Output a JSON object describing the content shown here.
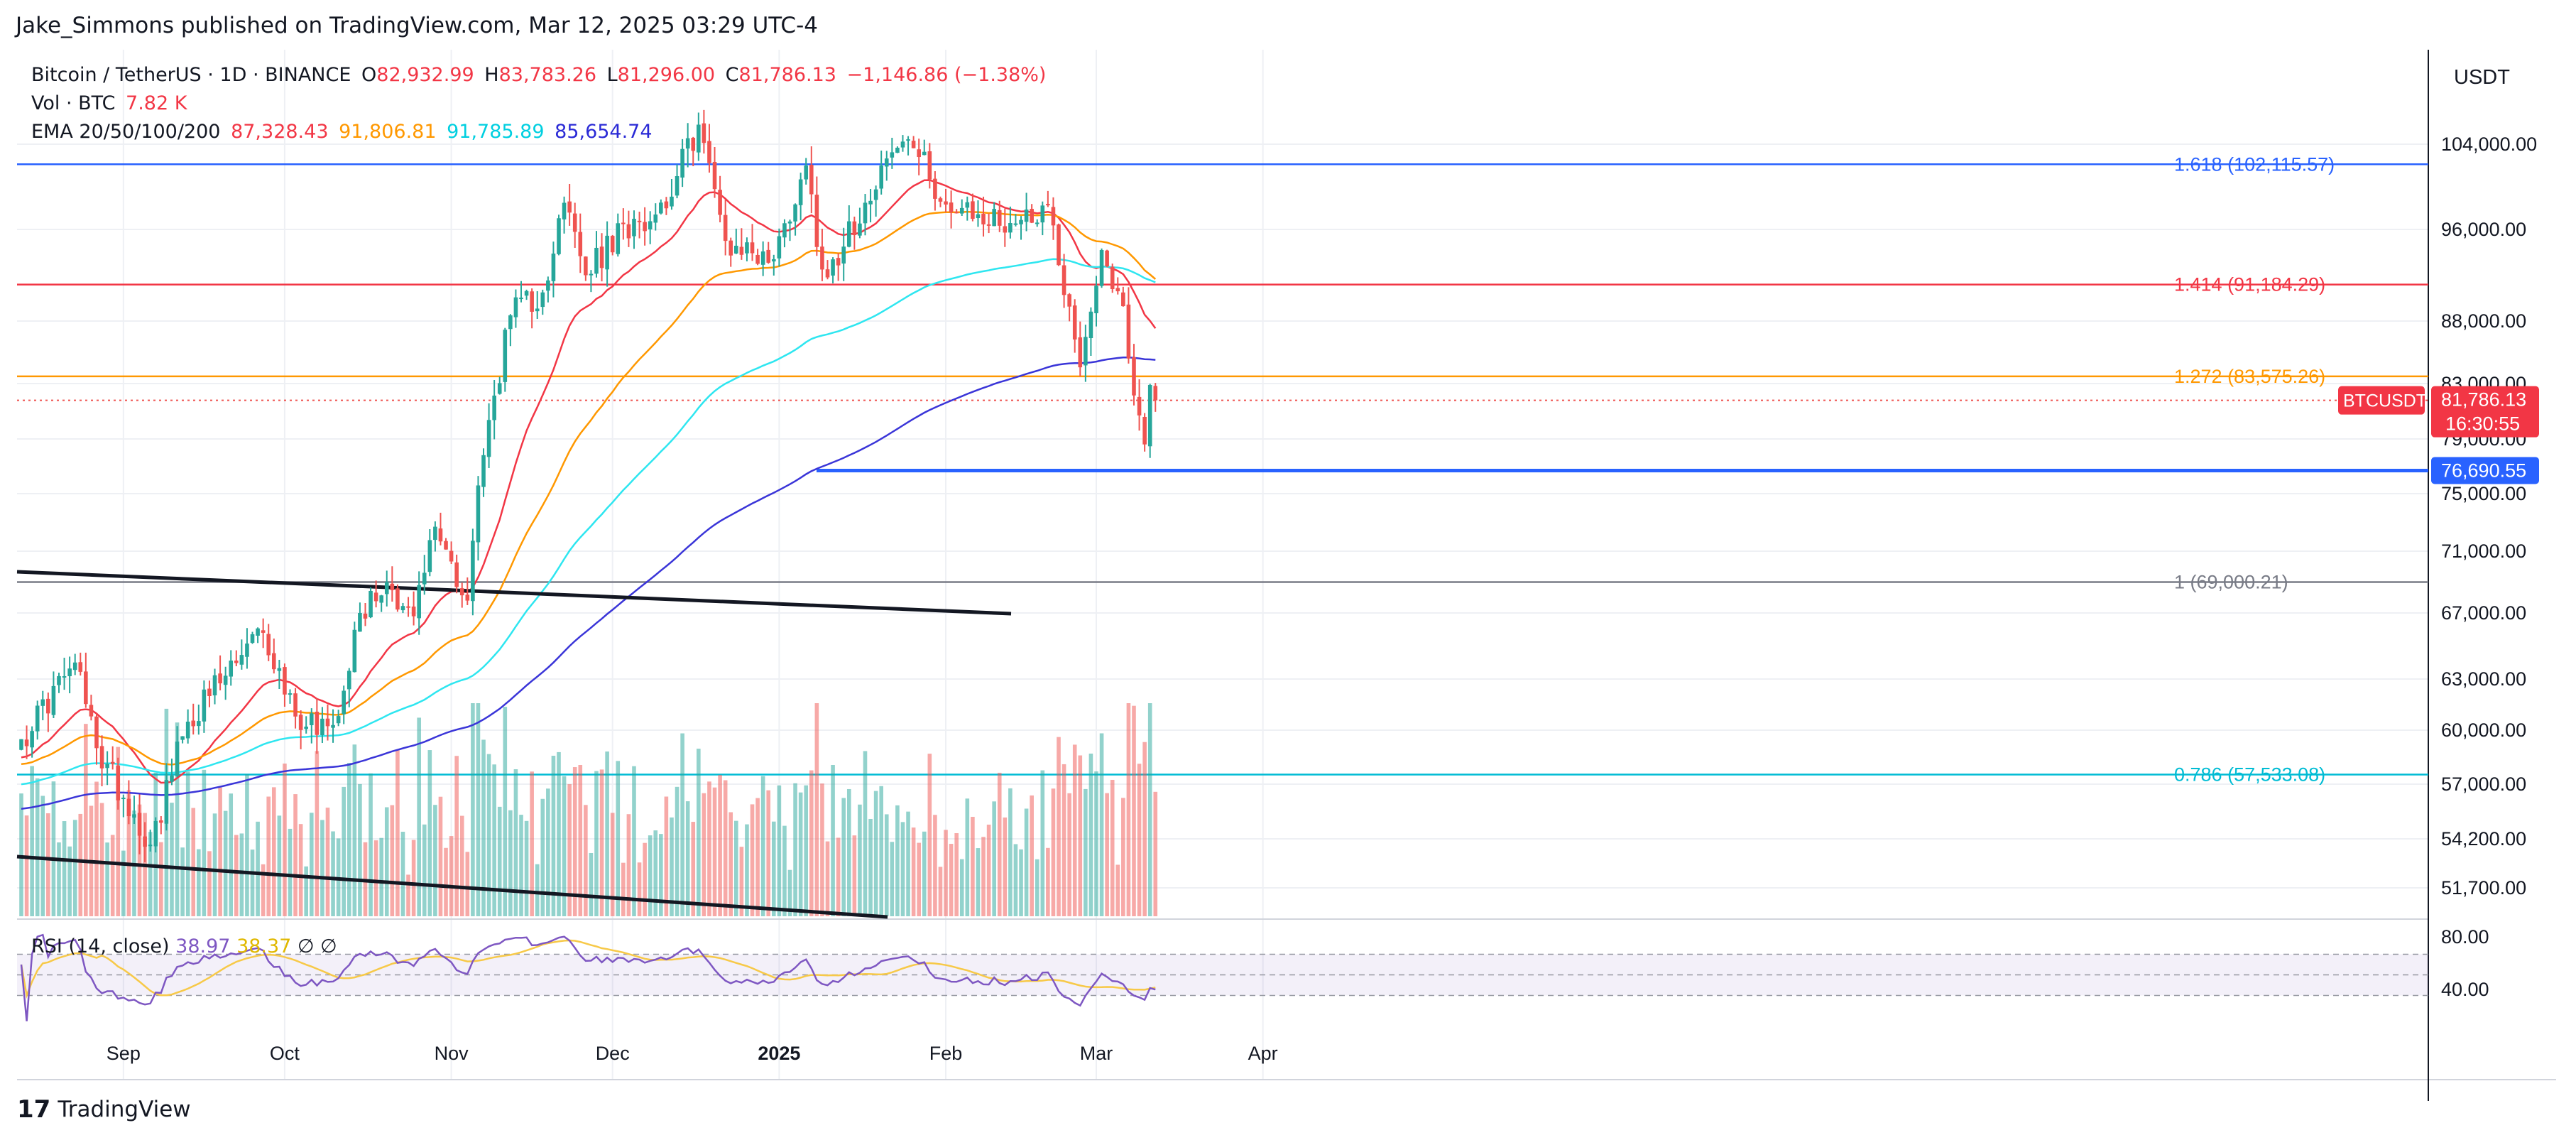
{
  "attribution": "Jake_Simmons published on TradingView.com, Mar 12, 2025 03:29 UTC-4",
  "brand": "TradingView",
  "symbol_line": {
    "symbol": "Bitcoin / TetherUS · 1D · BINANCE",
    "open_label": "O",
    "open": "82,932.99",
    "high_label": "H",
    "high": "83,783.26",
    "low_label": "L",
    "low": "81,296.00",
    "close_label": "C",
    "close": "81,786.13",
    "change": "−1,146.86 (−1.38%)"
  },
  "volume_line": {
    "label": "Vol · BTC",
    "value": "7.82 K"
  },
  "ema_line": {
    "label": "EMA 20/50/100/200",
    "values": [
      "87,328.43",
      "91,806.81",
      "91,785.89",
      "85,654.74"
    ],
    "colors": [
      "#f23645",
      "#ff9800",
      "#00e5ff",
      "#2a2ad6"
    ]
  },
  "rsi_line": {
    "label": "RSI (14, close)",
    "value": "38.97",
    "ma": "38.37",
    "extra": [
      "∅",
      "∅"
    ]
  },
  "currency": "USDT",
  "colors": {
    "up": "#26a69a",
    "down": "#ef5350",
    "fib_blue": "#2962ff",
    "fib_red": "#f23645",
    "fib_orange": "#ff9800",
    "fib_teal": "#00bcd4",
    "fib_gray": "#787b86",
    "rsi": "#7e57c2",
    "rsi_ma": "#f7c948"
  },
  "chart_data": {
    "type": "candlestick",
    "date_range": [
      "2024-08-13",
      "2025-03-12"
    ],
    "x_axis_labels": [
      "Sep",
      "Oct",
      "Nov",
      "Dec",
      "2025",
      "Feb",
      "Mar",
      "Apr"
    ],
    "price_axis_labels": [
      "104,000.00",
      "96,000.00",
      "88,000.00",
      "83,000.00",
      "79,000.00",
      "75,000.00",
      "71,000.00",
      "67,000.00",
      "63,000.00",
      "60,000.00",
      "57,000.00",
      "54,200.00",
      "51,700.00"
    ],
    "rsi_axis_labels": [
      "80.00",
      "40.00"
    ],
    "last_price": {
      "symbol": "BTCUSDT",
      "price": "81,786.13",
      "countdown": "16:30:55"
    },
    "horizontal_level": {
      "label": "76,690.55",
      "value": 76690.55
    },
    "fib_levels": [
      {
        "label": "1.618 (102,115.57)",
        "value": 102115.57,
        "color": "#2962ff"
      },
      {
        "label": "1.414 (91,184.29)",
        "value": 91184.29,
        "color": "#f23645"
      },
      {
        "label": "1.272 (83,575.26)",
        "value": 83575.26,
        "color": "#ff9800"
      },
      {
        "label": "1 (69,000.21)",
        "value": 69000.21,
        "color": "#787b86"
      },
      {
        "label": "0.786 (57,533.08)",
        "value": 57533.08,
        "color": "#00bcd4"
      }
    ],
    "anchor_closes": [
      [
        "2024-08-13",
        59500
      ],
      [
        "2024-08-23",
        64000
      ],
      [
        "2024-08-27",
        59000
      ],
      [
        "2024-09-06",
        53900
      ],
      [
        "2024-09-13",
        60500
      ],
      [
        "2024-09-20",
        63200
      ],
      [
        "2024-09-27",
        65800
      ],
      [
        "2024-10-03",
        60800
      ],
      [
        "2024-10-10",
        60300
      ],
      [
        "2024-10-15",
        67000
      ],
      [
        "2024-10-20",
        69000
      ],
      [
        "2024-10-25",
        66800
      ],
      [
        "2024-10-29",
        72700
      ],
      [
        "2024-11-04",
        67800
      ],
      [
        "2024-11-06",
        75600
      ],
      [
        "2024-11-12",
        88500
      ],
      [
        "2024-11-18",
        90500
      ],
      [
        "2024-11-22",
        98500
      ],
      [
        "2024-11-26",
        92000
      ],
      [
        "2024-12-05",
        97000
      ],
      [
        "2024-12-09",
        97400
      ],
      [
        "2024-12-13",
        101000
      ],
      [
        "2024-12-17",
        106000
      ],
      [
        "2024-12-22",
        95000
      ],
      [
        "2024-12-31",
        93400
      ],
      [
        "2025-01-06",
        102000
      ],
      [
        "2025-01-09",
        92500
      ],
      [
        "2025-01-13",
        94500
      ],
      [
        "2025-01-20",
        102000
      ],
      [
        "2025-01-25",
        104500
      ],
      [
        "2025-02-02",
        97600
      ],
      [
        "2025-02-13",
        96600
      ],
      [
        "2025-02-20",
        98300
      ],
      [
        "2025-02-26",
        84300
      ],
      [
        "2025-03-02",
        94200
      ],
      [
        "2025-03-05",
        90600
      ],
      [
        "2025-03-09",
        80700
      ],
      [
        "2025-03-10",
        78600
      ],
      [
        "2025-03-11",
        82900
      ],
      [
        "2025-03-12",
        81786
      ]
    ],
    "ema_final": {
      "ema20": 87328.43,
      "ema50": 91806.81,
      "ema100": 91785.89,
      "ema200": 85654.74
    },
    "rsi_last": 38.97,
    "rsi_ma_last": 38.37,
    "volume_last": "7.82 K"
  }
}
